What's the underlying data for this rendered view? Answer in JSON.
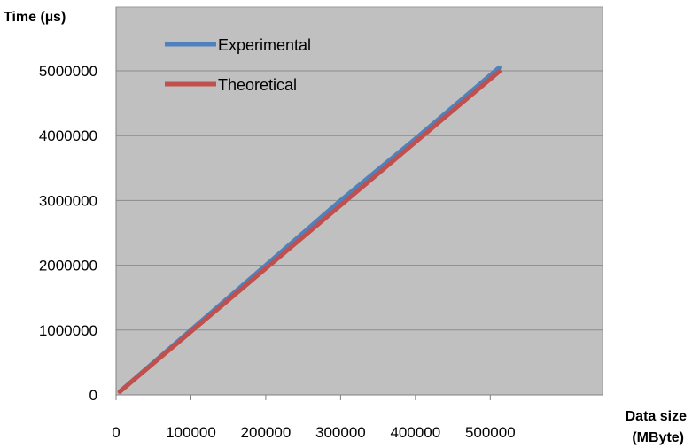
{
  "chart_data": {
    "type": "line",
    "title": "",
    "ylabel": "Time (µs)",
    "xlabel_line1": "Data size",
    "xlabel_line2": "(MByte)",
    "xlim": [
      0,
      650000
    ],
    "ylim": [
      0,
      5000000
    ],
    "x_ticks": [
      "0",
      "100000",
      "200000",
      "300000",
      "400000",
      "500000"
    ],
    "y_ticks": [
      "0",
      "1000000",
      "2000000",
      "3000000",
      "4000000",
      "5000000"
    ],
    "grid": true,
    "legend_position": "top-left",
    "colors": {
      "plot_bg": "#c0c0c0",
      "grid": "#8c8c8c"
    },
    "series": [
      {
        "name": "Experimental",
        "color": "#4f81bd",
        "x": [
          5000,
          100000,
          200000,
          300000,
          400000,
          512000
        ],
        "y": [
          50000,
          1000000,
          2000000,
          3000000,
          3950000,
          5050000
        ]
      },
      {
        "name": "Theoretical",
        "color": "#c0504d",
        "x": [
          5000,
          100000,
          200000,
          300000,
          400000,
          512000
        ],
        "y": [
          50000,
          975000,
          1950000,
          2925000,
          3900000,
          4990000
        ]
      }
    ]
  }
}
